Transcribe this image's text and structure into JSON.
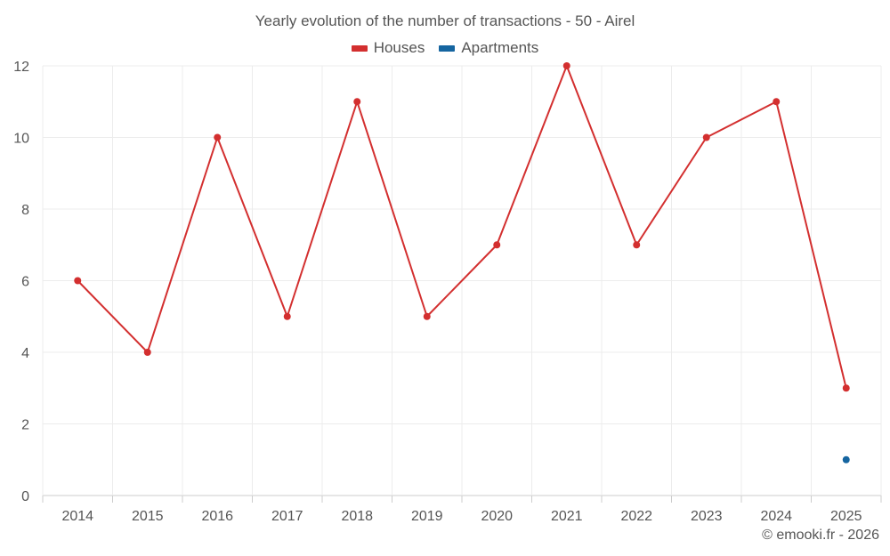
{
  "chart_data": {
    "type": "line",
    "title": "Yearly evolution of the number of transactions - 50 - Airel",
    "categories": [
      "2014",
      "2015",
      "2016",
      "2017",
      "2018",
      "2019",
      "2020",
      "2021",
      "2022",
      "2023",
      "2024",
      "2025"
    ],
    "series": [
      {
        "name": "Houses",
        "color": "#d32f2f",
        "values": [
          6,
          4,
          10,
          5,
          11,
          5,
          7,
          12,
          7,
          10,
          11,
          3
        ]
      },
      {
        "name": "Apartments",
        "color": "#1565a0",
        "values": [
          null,
          null,
          null,
          null,
          null,
          null,
          null,
          null,
          null,
          null,
          null,
          1
        ]
      }
    ],
    "ylim": [
      0,
      12
    ],
    "yticks": [
      0,
      2,
      4,
      6,
      8,
      10,
      12
    ],
    "xlabel": "",
    "ylabel": "",
    "grid": true,
    "legend": "top-center"
  },
  "footer": "© emooki.fr - 2026"
}
